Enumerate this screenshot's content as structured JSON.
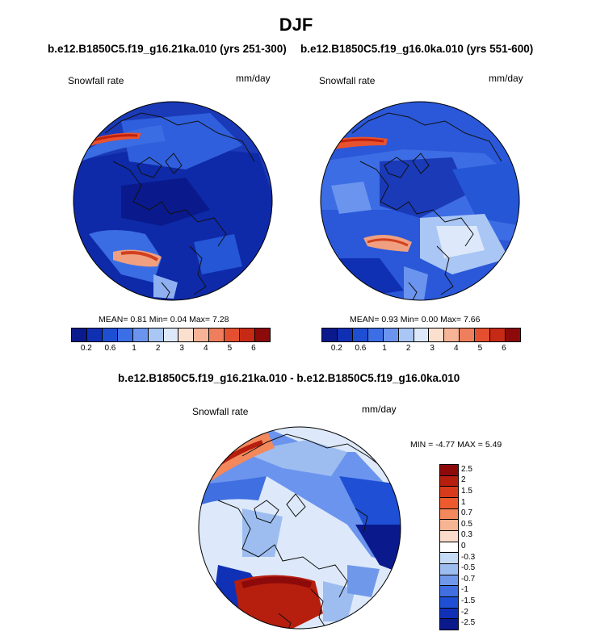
{
  "main_title": "DJF",
  "panels": [
    {
      "case": "b.e12.B1850C5.f19_g16.21ka.010 (yrs 251-300)",
      "variable": "Snowfall rate",
      "units": "mm/day",
      "stats_mean_label": "MEAN=",
      "stats_mean": "0.81",
      "stats_min_label": "Min=",
      "stats_min": "0.04",
      "stats_max_label": "Max=",
      "stats_max": "7.28"
    },
    {
      "case": "b.e12.B1850C5.f19_g16.0ka.010 (yrs 551-600)",
      "variable": "Snowfall rate",
      "units": "mm/day",
      "stats_mean_label": "MEAN=",
      "stats_mean": "0.93",
      "stats_min_label": "Min=",
      "stats_min": "0.00",
      "stats_max_label": "Max=",
      "stats_max": "7.66"
    }
  ],
  "diff_panel": {
    "title": "b.e12.B1850C5.f19_g16.21ka.010 - b.e12.B1850C5.f19_g16.0ka.010",
    "variable": "Snowfall rate",
    "units": "mm/day",
    "min_label": "MIN =",
    "min": "-4.77",
    "max_label": "MAX =",
    "max": "5.49"
  },
  "colorbar_abs": {
    "colors": [
      "#0a1a8c",
      "#1030b4",
      "#1e4fd2",
      "#3c6ee6",
      "#6b94ee",
      "#a9c6f4",
      "#dde9fa",
      "#fbe0d0",
      "#f6b396",
      "#ef7f5c",
      "#e4502f",
      "#c62a14",
      "#8c0a0a"
    ],
    "ticks": [
      "0.2",
      "0.6",
      "1",
      "2",
      "3",
      "4",
      "5",
      "6"
    ]
  },
  "colorbar_diff": {
    "colors": [
      "#8c0a0a",
      "#b61e0e",
      "#d83a1c",
      "#ec5a2e",
      "#f2885c",
      "#f6b493",
      "#fbdcca",
      "#ffffff",
      "#c5dbf6",
      "#9dbdf0",
      "#6f98ea",
      "#3f6fe0",
      "#1f4fd4",
      "#1030b6",
      "#0a1a8c"
    ],
    "ticks": [
      "2.5",
      "2",
      "1.5",
      "1",
      "0.7",
      "0.5",
      "0.3",
      "0",
      "-0.3",
      "-0.5",
      "-0.7",
      "-1",
      "-1.5",
      "-2",
      "-2.5"
    ]
  }
}
